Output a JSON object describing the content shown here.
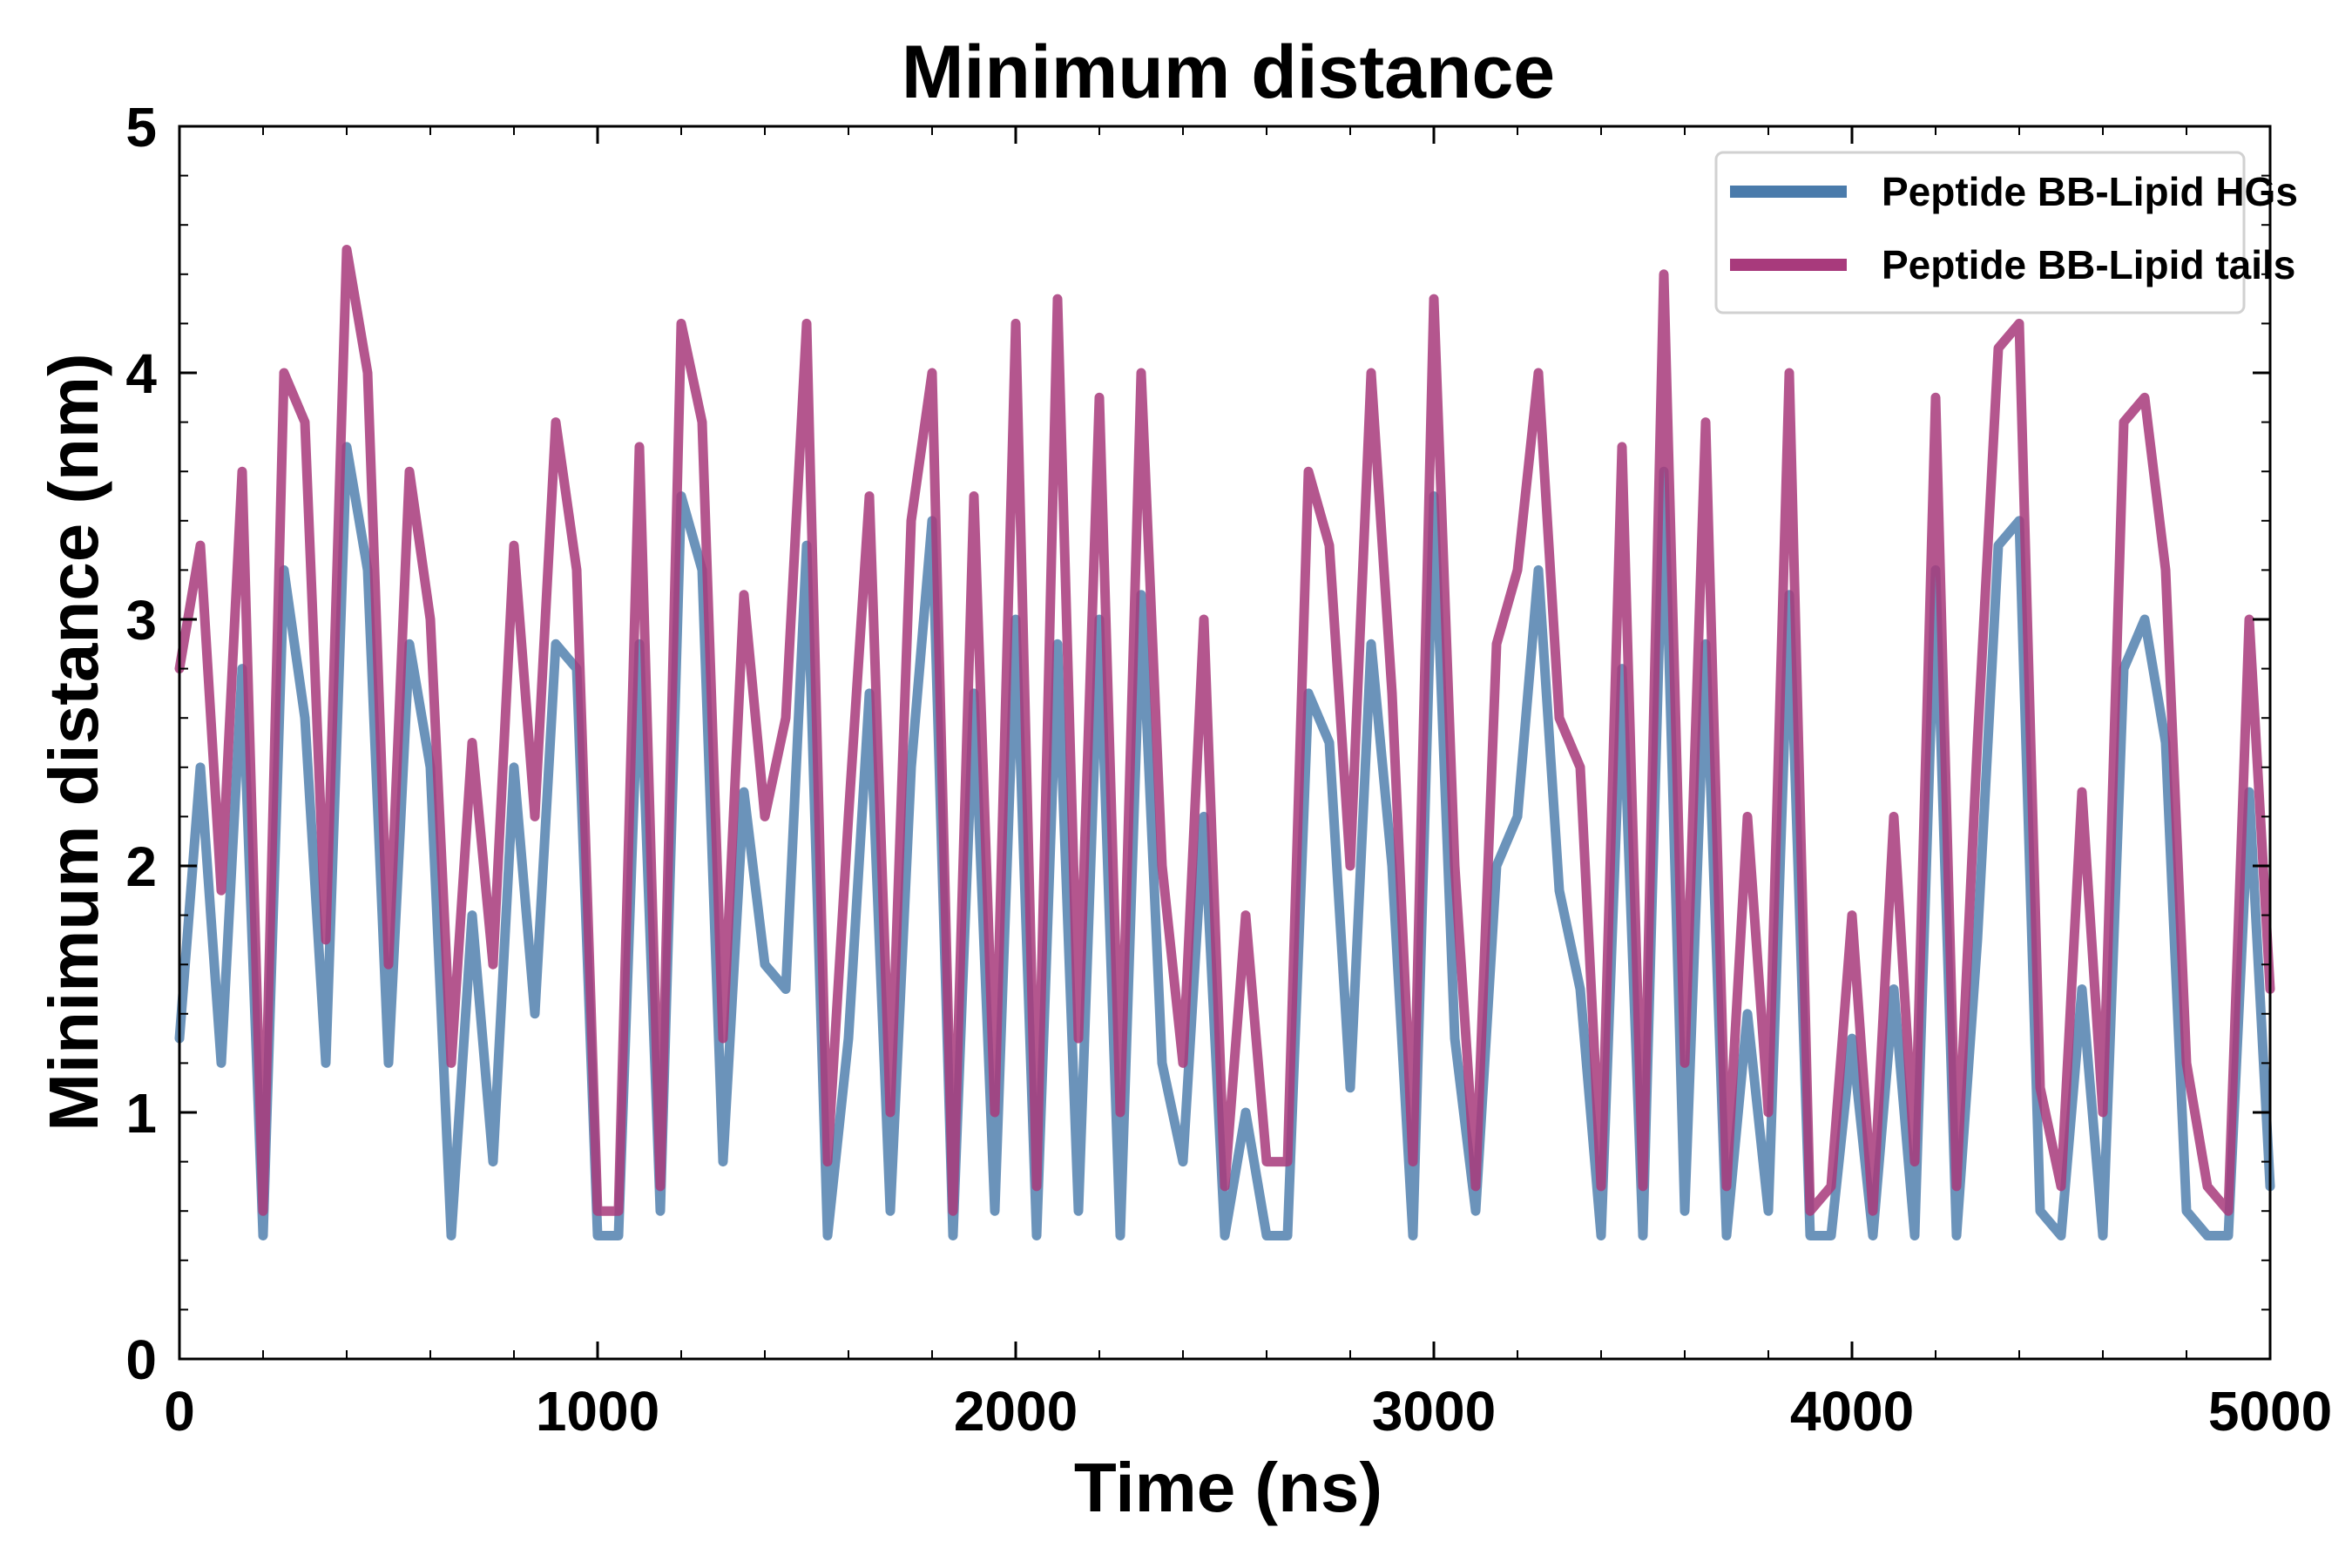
{
  "chart_data": {
    "type": "line",
    "title": "Minimum distance",
    "xlabel": "Time (ns)",
    "ylabel": "Minimum distance (nm)",
    "xlim": [
      0,
      5000
    ],
    "ylim": [
      0,
      5
    ],
    "x_ticks": [
      0,
      1000,
      2000,
      3000,
      4000,
      5000
    ],
    "x_tick_labels": [
      "0",
      "1000",
      "2000",
      "3000",
      "4000",
      "5000"
    ],
    "y_ticks": [
      0,
      1,
      2,
      3,
      4,
      5
    ],
    "y_tick_labels": [
      "0",
      "1",
      "2",
      "3",
      "4",
      "5"
    ],
    "x_minor_tick_step": 200,
    "y_minor_tick_step": 0.2,
    "grid": false,
    "legend_position": "top-right",
    "x": [
      0,
      50,
      100,
      150,
      200,
      250,
      300,
      350,
      400,
      450,
      500,
      550,
      600,
      650,
      700,
      750,
      800,
      850,
      900,
      950,
      1000,
      1050,
      1100,
      1150,
      1200,
      1250,
      1300,
      1350,
      1400,
      1450,
      1500,
      1550,
      1600,
      1650,
      1700,
      1750,
      1800,
      1850,
      1900,
      1950,
      2000,
      2050,
      2100,
      2150,
      2200,
      2250,
      2300,
      2350,
      2400,
      2450,
      2500,
      2550,
      2600,
      2650,
      2700,
      2750,
      2800,
      2850,
      2900,
      2950,
      3000,
      3050,
      3100,
      3150,
      3200,
      3250,
      3300,
      3350,
      3400,
      3450,
      3500,
      3550,
      3600,
      3650,
      3700,
      3750,
      3800,
      3850,
      3900,
      3950,
      4000,
      4050,
      4100,
      4150,
      4200,
      4250,
      4300,
      4350,
      4400,
      4450,
      4500,
      4550,
      4600,
      4650,
      4700,
      4750,
      4800,
      4850,
      4900,
      4950,
      5000
    ],
    "series": [
      {
        "name": "Peptide BB-Lipid HGs",
        "color": "#4a7bab",
        "values": [
          1.3,
          2.4,
          1.2,
          2.8,
          0.5,
          3.2,
          2.6,
          1.2,
          3.7,
          3.2,
          1.2,
          2.9,
          2.4,
          0.5,
          1.8,
          0.8,
          2.4,
          1.4,
          2.9,
          2.8,
          0.5,
          0.5,
          2.9,
          0.6,
          3.5,
          3.2,
          0.8,
          2.3,
          1.6,
          1.5,
          3.3,
          0.5,
          1.3,
          2.7,
          0.6,
          2.4,
          3.4,
          0.5,
          2.7,
          0.6,
          3.0,
          0.5,
          2.9,
          0.6,
          3.0,
          0.5,
          3.1,
          1.2,
          0.8,
          2.2,
          0.5,
          1.0,
          0.5,
          0.5,
          2.7,
          2.5,
          1.1,
          2.9,
          2.0,
          0.5,
          3.5,
          1.3,
          0.6,
          2.0,
          2.2,
          3.2,
          1.9,
          1.5,
          0.5,
          2.8,
          0.5,
          3.6,
          0.6,
          2.9,
          0.5,
          1.4,
          0.6,
          3.1,
          0.5,
          0.5,
          1.3,
          0.5,
          1.5,
          0.5,
          3.2,
          0.5,
          1.7,
          3.3,
          3.4,
          0.6,
          0.5,
          1.5,
          0.5,
          2.8,
          3.0,
          2.5,
          0.6,
          0.5,
          0.5,
          2.3,
          0.7
        ]
      },
      {
        "name": "Peptide BB-Lipid tails",
        "color": "#a83a7c",
        "values": [
          2.8,
          3.3,
          1.9,
          3.6,
          0.6,
          4.0,
          3.8,
          1.7,
          4.5,
          4.0,
          1.6,
          3.6,
          3.0,
          1.2,
          2.5,
          1.6,
          3.3,
          2.2,
          3.8,
          3.2,
          0.6,
          0.6,
          3.7,
          0.7,
          4.2,
          3.8,
          1.3,
          3.1,
          2.2,
          2.6,
          4.2,
          0.8,
          2.2,
          3.5,
          1.0,
          3.4,
          4.0,
          0.6,
          3.5,
          1.0,
          4.2,
          0.7,
          4.3,
          1.3,
          3.9,
          1.0,
          4.0,
          2.0,
          1.2,
          3.0,
          0.7,
          1.8,
          0.8,
          0.8,
          3.6,
          3.3,
          2.0,
          4.0,
          2.7,
          0.8,
          4.3,
          2.0,
          0.7,
          2.9,
          3.2,
          4.0,
          2.6,
          2.4,
          0.7,
          3.7,
          0.7,
          4.4,
          1.2,
          3.8,
          0.7,
          2.2,
          1.0,
          4.0,
          0.6,
          0.7,
          1.8,
          0.6,
          2.2,
          0.8,
          3.9,
          0.7,
          2.5,
          4.1,
          4.2,
          1.1,
          0.7,
          2.3,
          1.0,
          3.8,
          3.9,
          3.2,
          1.2,
          0.7,
          0.6,
          3.0,
          1.5
        ]
      }
    ]
  },
  "colors": {
    "hgs": "#4a7bab",
    "tails": "#a83a7c",
    "axis": "#000000"
  }
}
